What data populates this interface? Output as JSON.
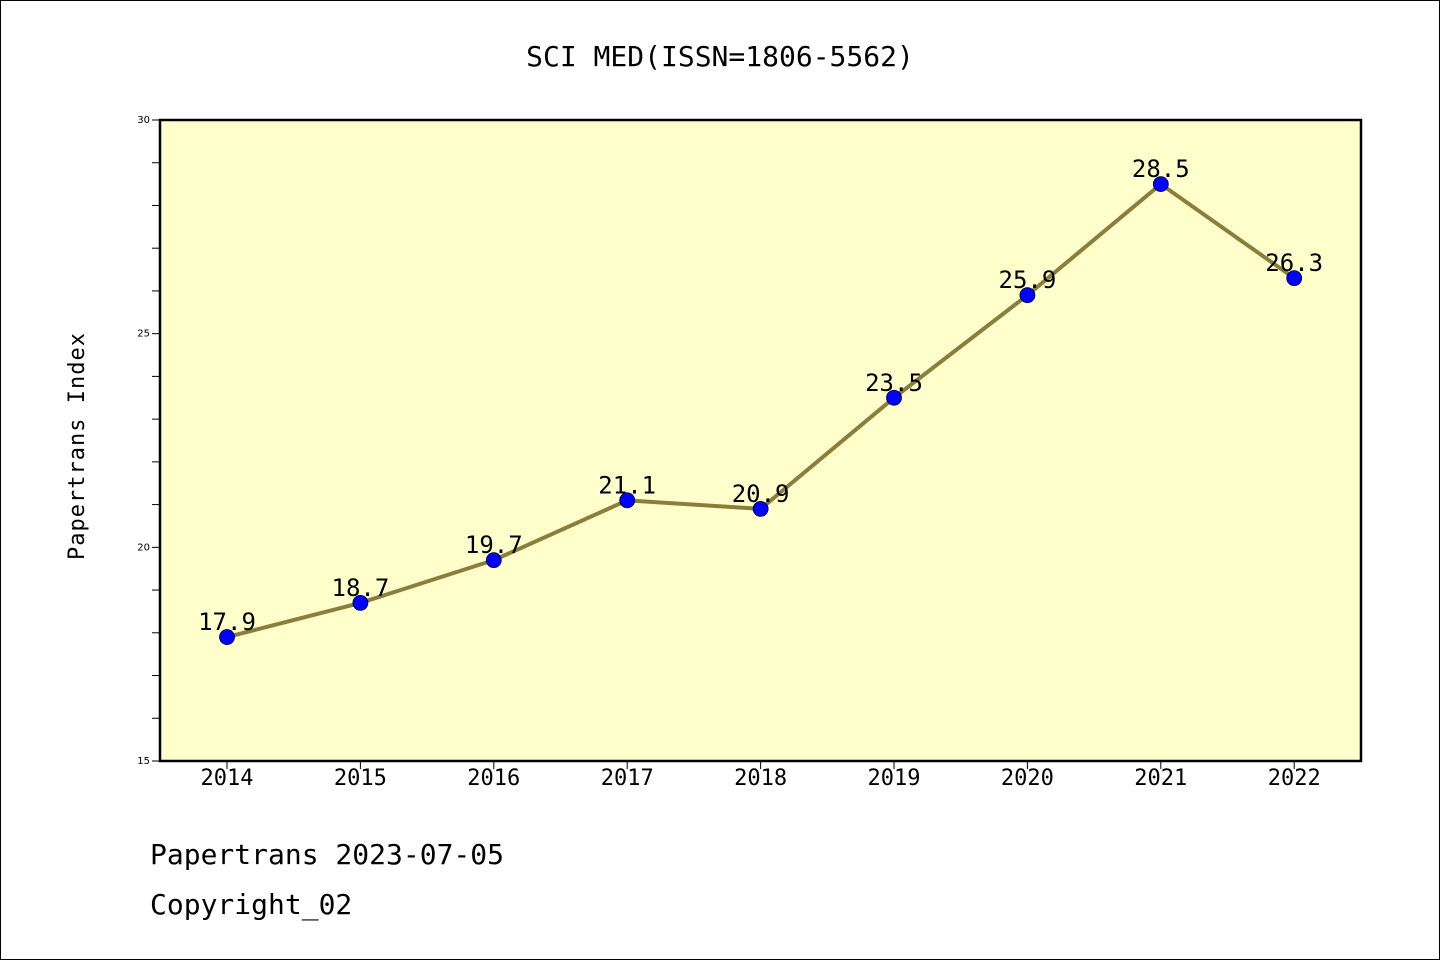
{
  "chart_data": {
    "type": "line",
    "title": "SCI MED(ISSN=1806-5562)",
    "xlabel": "",
    "ylabel": "Papertrans Index",
    "x": [
      "2014",
      "2015",
      "2016",
      "2017",
      "2018",
      "2019",
      "2020",
      "2021",
      "2022"
    ],
    "series": [
      {
        "values": [
          17.9,
          18.7,
          19.7,
          21.1,
          20.9,
          23.5,
          25.9,
          28.5,
          26.3
        ],
        "data_labels": [
          "17.9",
          "18.7",
          "19.7",
          "21.1",
          "20.9",
          "23.5",
          "25.9",
          "28.5",
          "26.3"
        ],
        "line_color": "#8b7d3a",
        "marker_color": "#0000ff"
      }
    ],
    "ylim": [
      15,
      30
    ],
    "yticks": [
      "15",
      "20",
      "25",
      "30"
    ],
    "grid": false,
    "plot_background": "#ffffcc"
  },
  "footer": {
    "line1": "Papertrans 2023-07-05",
    "line2": "Copyright_02"
  }
}
